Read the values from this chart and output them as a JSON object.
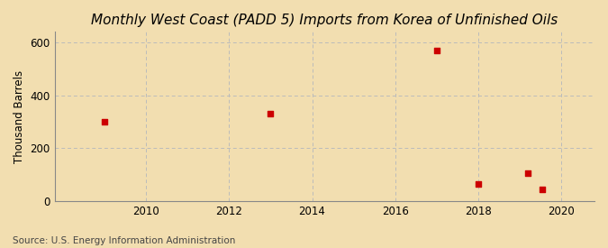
{
  "title": "Monthly West Coast (PADD 5) Imports from Korea of Unfinished Oils",
  "ylabel": "Thousand Barrels",
  "source": "Source: U.S. Energy Information Administration",
  "background_color": "#f2deb0",
  "plot_bg_color": "#f2deb0",
  "marker_color": "#cc0000",
  "marker_size": 5,
  "marker_style": "s",
  "xlim": [
    2007.8,
    2020.8
  ],
  "ylim": [
    0,
    640
  ],
  "xticks": [
    2010,
    2012,
    2014,
    2016,
    2018,
    2020
  ],
  "yticks": [
    0,
    200,
    400,
    600
  ],
  "grid_color": "#bbbbbb",
  "grid_style": "--",
  "data_x": [
    2009.0,
    2013.0,
    2017.0,
    2018.0,
    2019.2,
    2019.55
  ],
  "data_y": [
    300,
    330,
    570,
    65,
    105,
    45
  ],
  "title_fontsize": 11,
  "label_fontsize": 8.5,
  "tick_fontsize": 8.5,
  "source_fontsize": 7.5
}
